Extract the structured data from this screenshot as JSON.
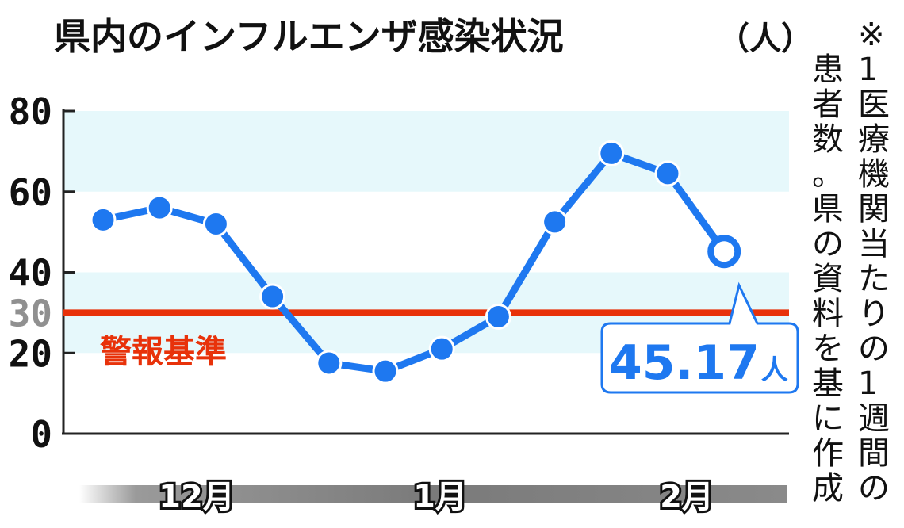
{
  "chart_data": {
    "type": "line",
    "title": "県内のインフルエンザ感染状況",
    "unit": "（人）",
    "note": "※1医療機関当たりの1週間の患者数。県の資料を基に作成",
    "note_col1": "※1医療機関当たりの1週間の",
    "note_col2": "患者数。県の資料を基に作成",
    "x_labels": [
      "12月",
      "1月",
      "2月"
    ],
    "ylim": [
      0,
      80
    ],
    "yticks": [
      0,
      20,
      30,
      40,
      60,
      80
    ],
    "series": [
      {
        "values": [
          53,
          56,
          52,
          34,
          17.5,
          15.5,
          21,
          29,
          52.5,
          69.5,
          64.5,
          45.17
        ]
      }
    ],
    "threshold": {
      "value": 30,
      "label": "警報基準"
    },
    "callout": {
      "value": "45.17",
      "unit": "人"
    },
    "colors": {
      "line": "#1e78f0",
      "threshold": "#e8320a",
      "band": "#e6f8fb",
      "tick_highlight": "#909090"
    }
  }
}
